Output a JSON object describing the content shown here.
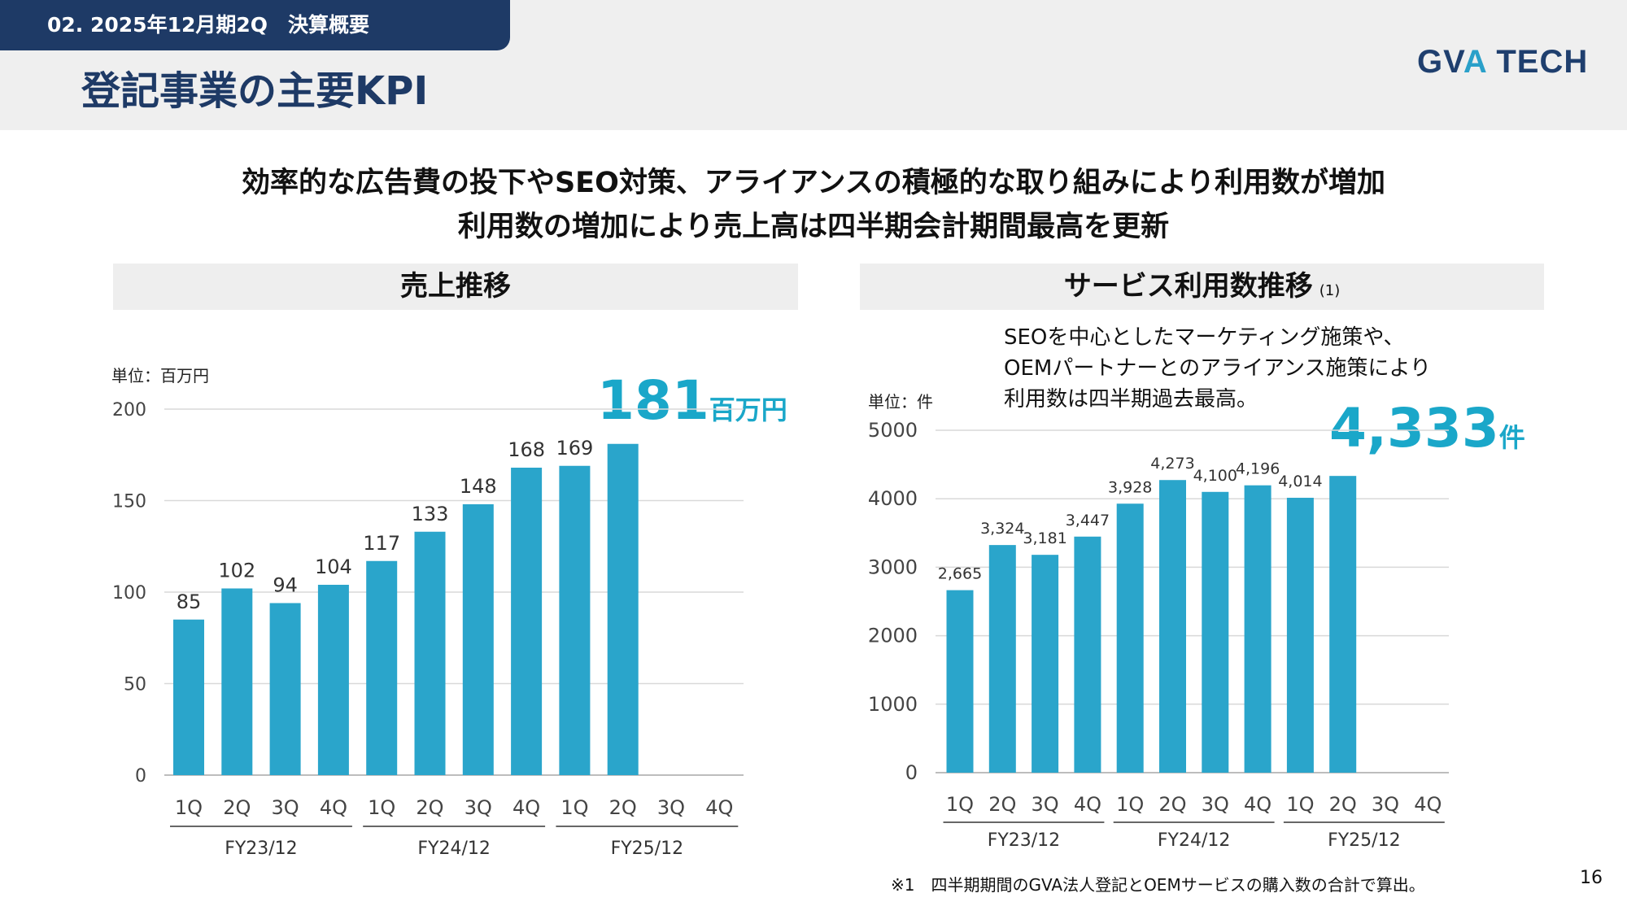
{
  "header": {
    "section_label": "02. 2025年12月期2Q　決算概要",
    "title": "登記事業の主要KPI",
    "logo_text_left": "GV",
    "logo_text_accent": "A",
    "logo_text_right": " TECH",
    "brand_color": "#1e3a66",
    "accent_color": "#2aa0c9"
  },
  "headline": {
    "line1": "効率的な広告費の投下やSEO対策、アライアンスの積極的な取り組みにより利用数が増加",
    "line2": "利用数の増加により売上高は四半期会計期間最高を更新"
  },
  "left_panel": {
    "title": "売上推移",
    "unit": "単位：百万円",
    "highlight_value": "181",
    "highlight_unit": "百万円"
  },
  "right_panel": {
    "title": "サービス利用数推移",
    "title_note": "(1)",
    "unit": "単位：件",
    "description": [
      "SEOを中心としたマーケティング施策や、",
      "OEMパートナーとのアライアンス施策により",
      "利用数は四半期過去最高。"
    ],
    "highlight_value": "4,333",
    "highlight_unit": "件"
  },
  "chart_data": [
    {
      "type": "bar",
      "title": "売上推移",
      "ylabel": "単位：百万円",
      "categories": [
        "1Q",
        "2Q",
        "3Q",
        "4Q",
        "1Q",
        "2Q",
        "3Q",
        "4Q",
        "1Q",
        "2Q",
        "3Q",
        "4Q"
      ],
      "groups": [
        {
          "label": "FY23/12",
          "from": 0,
          "to": 3
        },
        {
          "label": "FY24/12",
          "from": 4,
          "to": 7
        },
        {
          "label": "FY25/12",
          "from": 8,
          "to": 11
        }
      ],
      "values": [
        85,
        102,
        94,
        104,
        117,
        133,
        148,
        168,
        169,
        181,
        null,
        null
      ],
      "data_labels": [
        "85",
        "102",
        "94",
        "104",
        "117",
        "133",
        "148",
        "168",
        "169",
        "",
        "",
        ""
      ],
      "ylim": [
        0,
        200
      ],
      "yticks": [
        0,
        50,
        100,
        150,
        200
      ],
      "grid": true,
      "bar_color": "#2aa5cb"
    },
    {
      "type": "bar",
      "title": "サービス利用数推移",
      "ylabel": "単位：件",
      "categories": [
        "1Q",
        "2Q",
        "3Q",
        "4Q",
        "1Q",
        "2Q",
        "3Q",
        "4Q",
        "1Q",
        "2Q",
        "3Q",
        "4Q"
      ],
      "groups": [
        {
          "label": "FY23/12",
          "from": 0,
          "to": 3
        },
        {
          "label": "FY24/12",
          "from": 4,
          "to": 7
        },
        {
          "label": "FY25/12",
          "from": 8,
          "to": 11
        }
      ],
      "values": [
        2665,
        3324,
        3181,
        3447,
        3928,
        4273,
        4100,
        4196,
        4014,
        4333,
        null,
        null
      ],
      "data_labels": [
        "2,665",
        "3,324",
        "3,181",
        "3,447",
        "3,928",
        "4,273",
        "4,100",
        "4,196",
        "4,014",
        "",
        "",
        ""
      ],
      "ylim": [
        0,
        5000
      ],
      "yticks": [
        0,
        1000,
        2000,
        3000,
        4000,
        5000
      ],
      "grid": true,
      "bar_color": "#2aa5cb"
    }
  ],
  "footnote": "※1　四半期期間のGVA法人登記とOEMサービスの購入数の合計で算出。",
  "page_number": "16"
}
